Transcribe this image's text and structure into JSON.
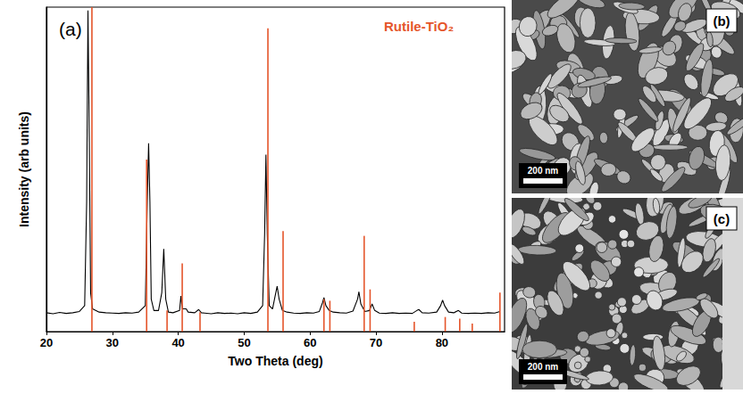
{
  "chart_data": {
    "type": "line",
    "panel": "(a)",
    "annotation": "Rutile-TiO₂",
    "x_label": "Two Theta (deg)",
    "y_label": "Intensity (arb units)",
    "xlim": [
      20,
      89.5
    ],
    "xticks": [
      20,
      30,
      40,
      50,
      60,
      70,
      80
    ],
    "ylim": [
      0,
      100
    ],
    "tick_labels": "x",
    "grid": false,
    "series": [
      {
        "type": "line",
        "color": "#000000",
        "x": [
          20,
          21,
          22,
          23,
          24,
          25,
          25.8,
          26.1,
          26.3,
          26.5,
          26.7,
          27,
          28,
          29,
          30,
          31,
          32,
          33,
          34,
          35,
          35.3,
          35.5,
          35.7,
          35.9,
          36.3,
          37,
          37.5,
          37.8,
          38.1,
          38.5,
          39.2,
          40.2,
          40.4,
          40.6,
          41.2,
          41.5,
          42.5,
          43.1,
          43.5,
          44,
          45,
          46,
          47,
          48,
          49,
          50,
          51,
          52,
          52.8,
          53.1,
          53.3,
          53.5,
          53.8,
          54.3,
          54.7,
          55,
          55.3,
          55.8,
          56.5,
          57.5,
          58.5,
          59.5,
          60.5,
          61.4,
          61.9,
          62.1,
          62.4,
          62.9,
          63.5,
          64.5,
          65.5,
          66.5,
          67.2,
          67.4,
          67.7,
          68.3,
          69,
          69.4,
          69.8,
          70.5,
          71.5,
          72.5,
          73.5,
          74.5,
          75.5,
          76.2,
          76.5,
          77,
          78,
          79.2,
          79.8,
          80.1,
          80.4,
          81,
          81.8,
          82.5,
          83,
          84,
          85,
          86,
          87,
          88,
          88.8
        ],
        "values": [
          5.8,
          5.5,
          5.9,
          5.6,
          5.8,
          6.2,
          8,
          40,
          99,
          60,
          12,
          7,
          6,
          5.8,
          5.7,
          5.6,
          5.8,
          5.7,
          6,
          8,
          40,
          58,
          40,
          10,
          6.5,
          6.5,
          12,
          25.5,
          10,
          6,
          5.8,
          6.5,
          11,
          7,
          7,
          6,
          5.8,
          6.8,
          5.8,
          5.7,
          5.5,
          5.8,
          5.6,
          5.7,
          5.5,
          5.8,
          5.6,
          6,
          8,
          30,
          54.5,
          30,
          8,
          7,
          11,
          14,
          10,
          6.5,
          6,
          5.7,
          5.6,
          5.8,
          5.7,
          6.2,
          9,
          10.5,
          8,
          6.5,
          6,
          5.8,
          5.7,
          6.3,
          10,
          12.3,
          8.5,
          6.2,
          6.5,
          8.5,
          6.5,
          5.7,
          5.6,
          5.8,
          5.6,
          5.7,
          5.6,
          6.5,
          6.8,
          5.8,
          5.7,
          6,
          8,
          9.7,
          8,
          6,
          5.8,
          6.5,
          5.7,
          5.6,
          5.7,
          5.6,
          5.8,
          5.7,
          6.2
        ]
      },
      {
        "name": "Rutile-TiO₂",
        "type": "stick",
        "color": "#e5552b",
        "x": [
          26.9,
          35.2,
          38.3,
          40.6,
          43.3,
          53.6,
          55.9,
          62.1,
          63.0,
          68.2,
          69.1,
          75.8,
          80.5,
          82.7,
          84.6,
          88.8
        ],
        "values": [
          100,
          53,
          6.5,
          21,
          6,
          93.5,
          31,
          10,
          9.5,
          29.5,
          13,
          3,
          4.5,
          4,
          2.5,
          12
        ]
      }
    ]
  },
  "images": [
    {
      "label": "(b)",
      "scale_bar": "200 nm"
    },
    {
      "label": "(c)",
      "scale_bar": "200 nm"
    }
  ]
}
